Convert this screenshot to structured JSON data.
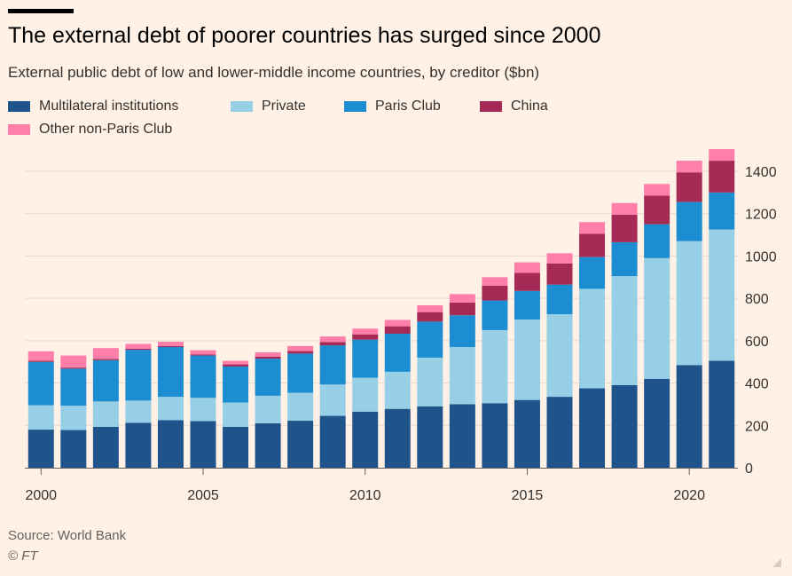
{
  "header": {
    "title": "The external debt of poorer countries has surged since 2000",
    "subtitle": "External public debt of low and lower-middle income countries, by creditor ($bn)"
  },
  "footer": {
    "source": "Source: World Bank",
    "credit": "© FT"
  },
  "chart_data": {
    "type": "bar",
    "stacked": true,
    "title": "The external debt of poorer countries has surged since 2000",
    "subtitle": "External public debt of low and lower-middle income countries, by creditor ($bn)",
    "xlabel": "",
    "ylabel": "",
    "ylim": [
      0,
      1500
    ],
    "yticks": [
      0,
      200,
      400,
      600,
      800,
      1000,
      1200,
      1400
    ],
    "xticks": [
      2000,
      2005,
      2010,
      2015,
      2020
    ],
    "y_axis_position": "right",
    "grid": true,
    "legend_position": "top-left",
    "categories": [
      2000,
      2001,
      2002,
      2003,
      2004,
      2005,
      2006,
      2007,
      2008,
      2009,
      2010,
      2011,
      2012,
      2013,
      2014,
      2015,
      2016,
      2017,
      2018,
      2019,
      2020,
      2021
    ],
    "series": [
      {
        "name": "Multilateral institutions",
        "color": "#1f538c",
        "values": [
          180,
          178,
          193,
          212,
          225,
          220,
          193,
          210,
          222,
          245,
          265,
          278,
          290,
          300,
          305,
          320,
          335,
          375,
          390,
          420,
          485,
          505
        ]
      },
      {
        "name": "Private",
        "color": "#96cfe6",
        "values": [
          115,
          115,
          120,
          105,
          110,
          110,
          115,
          130,
          132,
          148,
          160,
          175,
          230,
          270,
          345,
          380,
          390,
          470,
          515,
          570,
          585,
          620
        ]
      },
      {
        "name": "Paris Club",
        "color": "#1b8dd0",
        "values": [
          205,
          175,
          195,
          240,
          235,
          200,
          170,
          175,
          185,
          185,
          180,
          180,
          170,
          150,
          140,
          135,
          140,
          150,
          160,
          160,
          185,
          175
        ]
      },
      {
        "name": "China",
        "color": "#a52b56",
        "values": [
          6,
          5,
          6,
          5,
          5,
          5,
          10,
          10,
          12,
          15,
          25,
          35,
          45,
          60,
          70,
          85,
          100,
          110,
          130,
          135,
          140,
          150
        ]
      },
      {
        "name": "Other non-Paris Club",
        "color": "#ff7faa",
        "values": [
          44,
          57,
          51,
          23,
          20,
          20,
          17,
          20,
          24,
          27,
          27,
          30,
          32,
          40,
          40,
          50,
          48,
          55,
          55,
          55,
          55,
          55
        ]
      }
    ]
  }
}
